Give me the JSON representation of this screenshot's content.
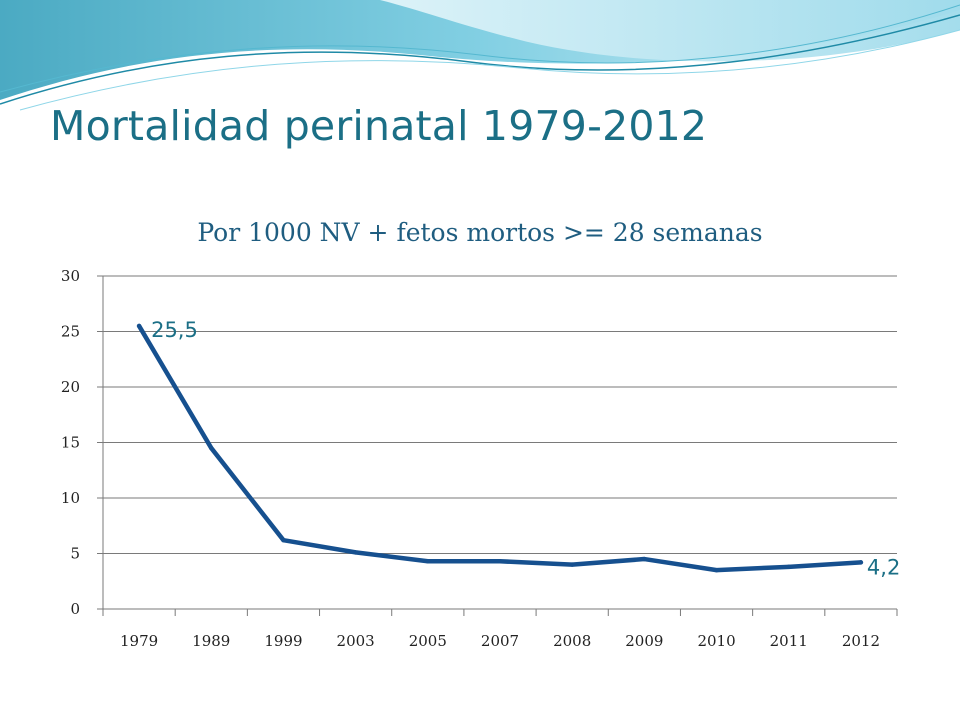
{
  "slide": {
    "title": "Mortalidad perinatal 1979-2012"
  },
  "colors": {
    "title": "#1b6f86",
    "line": "#16508f",
    "grid": "#7a7a7a",
    "deco_dark": "#1f8aa6",
    "deco_light": "#8fd6e8"
  },
  "chart_data": {
    "type": "line",
    "title": "Por 1000 NV + fetos mortos >= 28 semanas",
    "categories": [
      "1979",
      "1989",
      "1999",
      "2003",
      "2005",
      "2007",
      "2008",
      "2009",
      "2010",
      "2011",
      "2012"
    ],
    "series": [
      {
        "values": [
          25.5,
          14.5,
          6.2,
          5.1,
          4.3,
          4.3,
          4.0,
          4.5,
          3.5,
          3.8,
          4.2
        ]
      }
    ],
    "data_labels": [
      {
        "index": 0,
        "text": "25,5"
      },
      {
        "index": 10,
        "text": "4,2"
      }
    ],
    "ylim": [
      0,
      30
    ],
    "yticks": [
      "0",
      "5",
      "10",
      "15",
      "20",
      "25",
      "30"
    ],
    "grid": true,
    "legend": "none"
  }
}
